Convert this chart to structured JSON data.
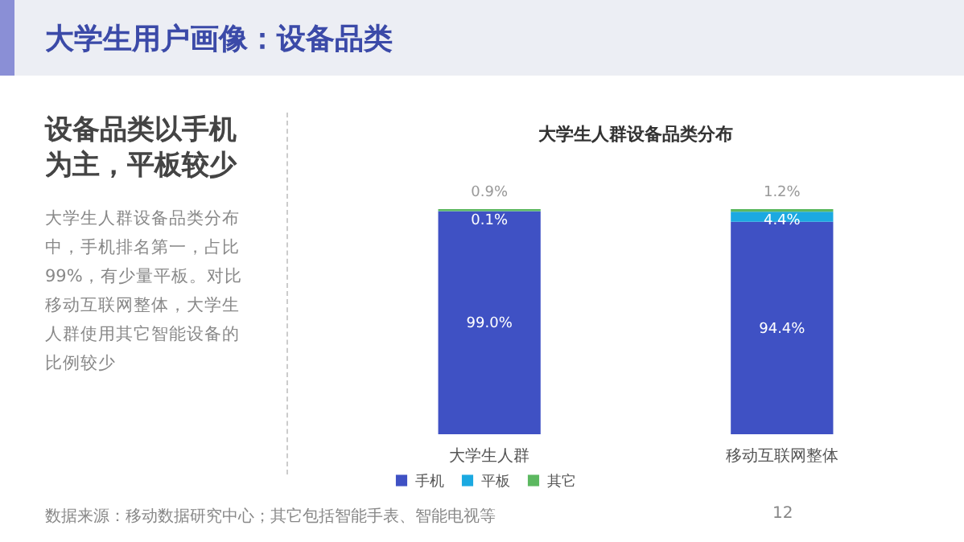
{
  "chart_data": {
    "type": "bar",
    "stacked": true,
    "title": "大学生人群设备品类分布",
    "categories": [
      "大学生人群",
      "移动互联网整体"
    ],
    "series": [
      {
        "name": "手机",
        "color": "#3f51c4",
        "values": [
          99.0,
          94.4
        ],
        "value_labels": [
          "99.0%",
          "94.4%"
        ]
      },
      {
        "name": "平板",
        "color": "#1ba9e1",
        "values": [
          0.1,
          4.4
        ],
        "value_labels": [
          "0.1%",
          "4.4%"
        ]
      },
      {
        "name": "其它",
        "color": "#5cb860",
        "values": [
          0.9,
          1.2
        ],
        "value_labels": [
          "0.9%",
          "1.2%"
        ]
      }
    ],
    "legend": "bottom",
    "tick_labels": "x",
    "grid": false,
    "annotations": [
      "大学生用户画像：设备品类",
      "设备品类以手机为主，平板较少",
      "大学生人群设备品类分布中，手机排名第一，占比99%，有少量平板。对比移动互联网整体，大学生人群使用其它智能设备的比例较少",
      "数据来源：移动数据研究中心；其它包括智能手表、智能电视等",
      "12"
    ]
  }
}
